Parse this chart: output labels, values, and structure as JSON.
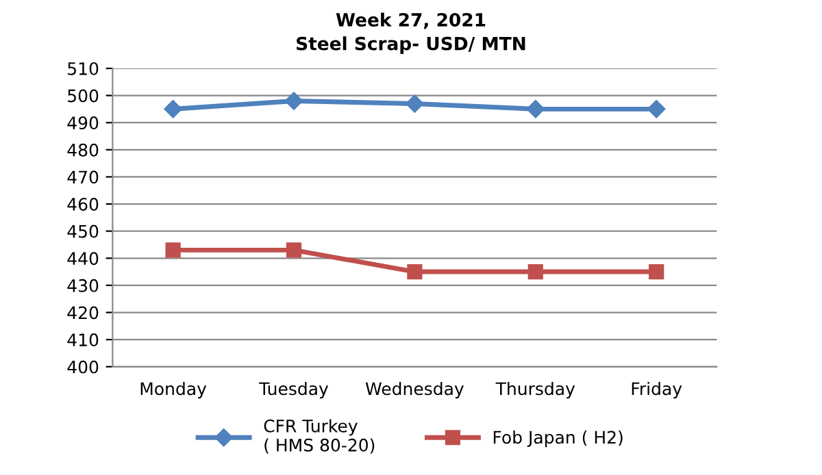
{
  "chart_data": {
    "type": "line",
    "title": "Week 27, 2021",
    "subtitle": "Steel Scrap- USD/ MTN",
    "categories": [
      "Monday",
      "Tuesday",
      "Wednesday",
      "Thursday",
      "Friday"
    ],
    "series": [
      {
        "name": "CFR Turkey\n( HMS 80-20)",
        "color": "#4f81bd",
        "marker": "diamond",
        "values": [
          495,
          498,
          497,
          495,
          495
        ]
      },
      {
        "name": "Fob Japan ( H2)",
        "color": "#c0504d",
        "marker": "square",
        "values": [
          443,
          443,
          435,
          435,
          435
        ]
      }
    ],
    "ylim": [
      400,
      510
    ],
    "yticks": [
      400,
      410,
      420,
      430,
      440,
      450,
      460,
      470,
      480,
      490,
      500,
      510
    ],
    "grid": "y",
    "legend": "bottom",
    "line_style": "solid"
  }
}
